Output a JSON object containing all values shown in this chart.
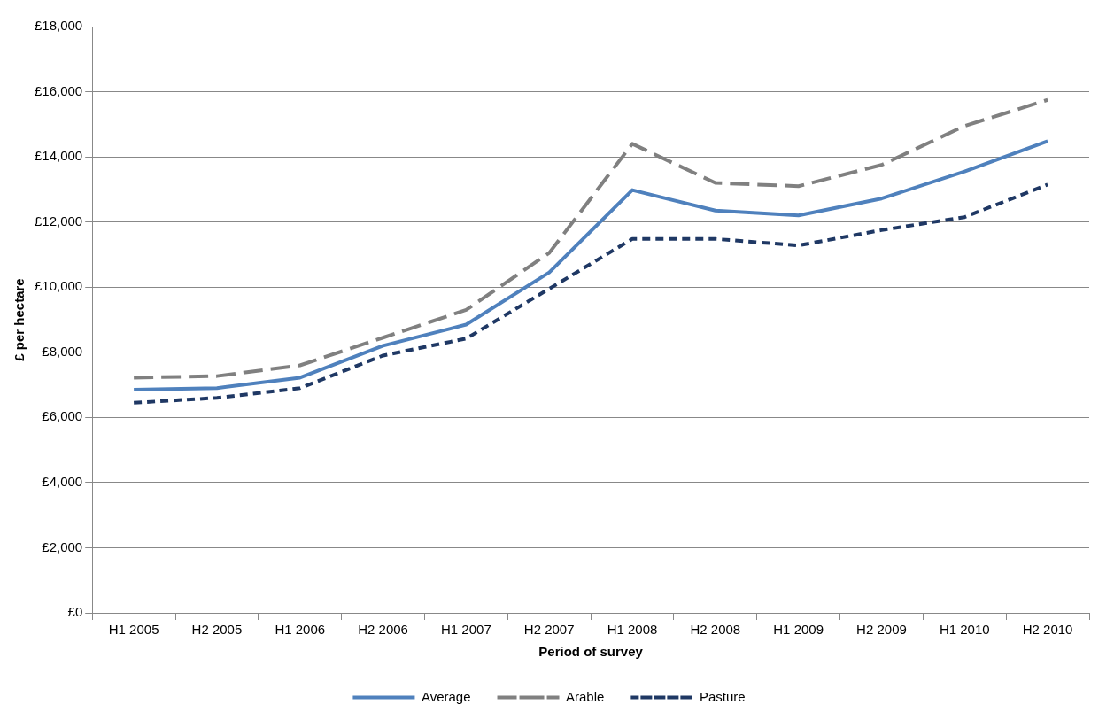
{
  "chart_data": {
    "type": "line",
    "xlabel": "Period of survey",
    "ylabel": "£ per hectare",
    "categories": [
      "H1 2005",
      "H2 2005",
      "H1 2006",
      "H2 2006",
      "H1 2007",
      "H2 2007",
      "H1 2008",
      "H2 2008",
      "H1 2009",
      "H2 2009",
      "H1 2010",
      "H2 2010"
    ],
    "series": [
      {
        "name": "Average",
        "color": "#4f81bd",
        "line_style": "solid",
        "values": [
          6850,
          6900,
          7220,
          8200,
          8850,
          10450,
          12980,
          12350,
          12200,
          12720,
          13550,
          14480
        ]
      },
      {
        "name": "Arable",
        "color": "#808080",
        "line_style": "dashed",
        "values": [
          7220,
          7270,
          7600,
          8450,
          9300,
          11050,
          14400,
          13200,
          13100,
          13750,
          14950,
          15750
        ]
      },
      {
        "name": "Pasture",
        "color": "#1f3864",
        "line_style": "dotted",
        "values": [
          6450,
          6600,
          6900,
          7900,
          8420,
          9950,
          11480,
          11480,
          11280,
          11750,
          12150,
          13150
        ]
      }
    ],
    "ylim": [
      0,
      18000
    ],
    "yticks": [
      {
        "value": 0,
        "label": "£0"
      },
      {
        "value": 2000,
        "label": "£2,000"
      },
      {
        "value": 4000,
        "label": "£4,000"
      },
      {
        "value": 6000,
        "label": "£6,000"
      },
      {
        "value": 8000,
        "label": "£8,000"
      },
      {
        "value": 10000,
        "label": "£10,000"
      },
      {
        "value": 12000,
        "label": "£12,000"
      },
      {
        "value": 14000,
        "label": "£14,000"
      },
      {
        "value": 16000,
        "label": "£16,000"
      },
      {
        "value": 18000,
        "label": "£18,000"
      }
    ],
    "grid": "y",
    "legend": "bottom",
    "marker": "none"
  }
}
